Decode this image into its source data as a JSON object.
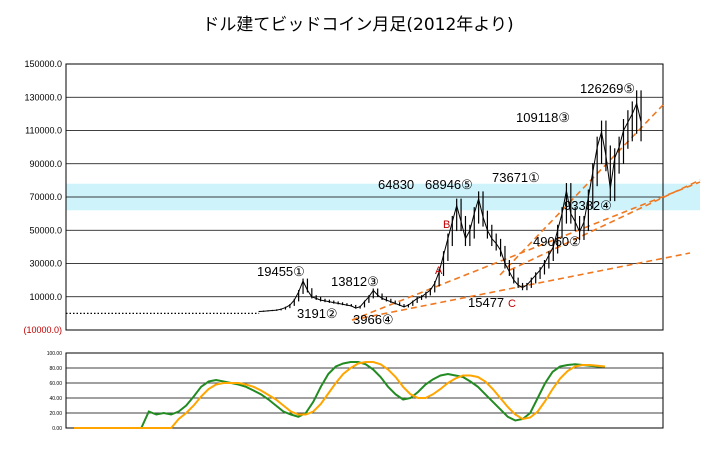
{
  "chart_data": [
    {
      "type": "line",
      "title": "ドル建てビッドコイン月足(2012年より)",
      "y_ticks": [
        "150000.0",
        "130000.0",
        "110000.0",
        "90000.0",
        "70000.0",
        "50000.0",
        "30000.0",
        "10000.0",
        "(10000.0)"
      ],
      "ylim": [
        -10000,
        150000
      ],
      "grid": true,
      "series": [
        {
          "values": [
            [
              0,
              13
            ],
            [
              0.25,
              13
            ],
            [
              0.5,
              13
            ],
            [
              0.75,
              13
            ],
            [
              1,
              13
            ],
            [
              1.25,
              13
            ],
            [
              1.5,
              13
            ],
            [
              1.75,
              13
            ],
            [
              2,
              13
            ],
            [
              2.25,
              13
            ],
            [
              2.5,
              13
            ],
            [
              2.75,
              13
            ],
            [
              3,
              14
            ],
            [
              3.25,
              14
            ],
            [
              3.5,
              15
            ],
            [
              3.75,
              16
            ],
            [
              4,
              17
            ],
            [
              4.25,
              20
            ],
            [
              4.5,
              25
            ],
            [
              4.75,
              40
            ],
            [
              5,
              55
            ],
            [
              5.25,
              70
            ],
            [
              5.5,
              90
            ],
            [
              5.75,
              110
            ],
            [
              6,
              140
            ],
            [
              6.25,
              170
            ],
            [
              6.5,
              200
            ],
            [
              6.75,
              230
            ],
            [
              7,
              260
            ],
            [
              7.25,
              300
            ],
            [
              7.5,
              350
            ],
            [
              7.75,
              400
            ],
            [
              8,
              450
            ],
            [
              8.25,
              500
            ],
            [
              8.5,
              550
            ],
            [
              8.75,
              600
            ],
            [
              9,
              650
            ],
            [
              9.25,
              700
            ],
            [
              9.5,
              750
            ],
            [
              9.75,
              800
            ],
            [
              10,
              850
            ],
            [
              10.25,
              900
            ],
            [
              10.5,
              950
            ],
            [
              10.75,
              1000
            ],
            [
              11,
              1100
            ],
            [
              11.25,
              1300
            ],
            [
              11.5,
              1500
            ],
            [
              11.75,
              1700
            ],
            [
              12,
              2000
            ],
            [
              12.25,
              2500
            ],
            [
              12.5,
              3500
            ],
            [
              12.75,
              5000
            ],
            [
              13,
              8000
            ],
            [
              13.25,
              13000
            ],
            [
              13.5,
              19455
            ],
            [
              13.75,
              14000
            ],
            [
              14,
              10000
            ],
            [
              14.25,
              9000
            ],
            [
              14.5,
              8000
            ],
            [
              14.75,
              7500
            ],
            [
              15,
              7000
            ],
            [
              15.25,
              6500
            ],
            [
              15.5,
              6000
            ],
            [
              15.75,
              5500
            ],
            [
              16,
              5000
            ],
            [
              16.25,
              4500
            ],
            [
              16.5,
              3191
            ],
            [
              16.75,
              4000
            ],
            [
              17,
              7000
            ],
            [
              17.25,
              10000
            ],
            [
              17.5,
              13812
            ],
            [
              17.75,
              11000
            ],
            [
              18,
              9000
            ],
            [
              18.25,
              8000
            ],
            [
              18.5,
              7000
            ],
            [
              18.75,
              6000
            ],
            [
              19,
              5000
            ],
            [
              19.25,
              3966
            ],
            [
              19.5,
              5000
            ],
            [
              19.75,
              7000
            ],
            [
              20,
              9000
            ],
            [
              20.25,
              10000
            ],
            [
              20.5,
              12000
            ],
            [
              20.75,
              14000
            ],
            [
              21,
              18000
            ],
            [
              21.25,
              25000
            ],
            [
              21.5,
              35000
            ],
            [
              21.75,
              45000
            ],
            [
              22,
              55000
            ],
            [
              22.25,
              64830
            ],
            [
              22.5,
              55000
            ],
            [
              22.75,
              45000
            ],
            [
              23,
              50000
            ],
            [
              23.25,
              60000
            ],
            [
              23.5,
              68946
            ],
            [
              23.75,
              58000
            ],
            [
              24,
              50000
            ],
            [
              24.25,
              45000
            ],
            [
              24.5,
              42000
            ],
            [
              24.75,
              38000
            ],
            [
              25,
              30000
            ],
            [
              25.25,
              25000
            ],
            [
              25.5,
              20000
            ],
            [
              25.75,
              17000
            ],
            [
              26,
              15477
            ],
            [
              26.25,
              17000
            ],
            [
              26.5,
              20000
            ],
            [
              26.75,
              23000
            ],
            [
              27,
              26000
            ],
            [
              27.25,
              30000
            ],
            [
              27.5,
              35000
            ],
            [
              27.75,
              40000
            ],
            [
              28,
              50000
            ],
            [
              28.25,
              60000
            ],
            [
              28.5,
              73671
            ],
            [
              28.75,
              60000
            ],
            [
              29,
              55000
            ],
            [
              29.25,
              49060
            ],
            [
              29.5,
              55000
            ],
            [
              29.75,
              70000
            ],
            [
              30,
              85000
            ],
            [
              30.25,
              100000
            ],
            [
              30.5,
              109118
            ],
            [
              30.75,
              95000
            ],
            [
              31,
              75000
            ],
            [
              31.25,
              93382
            ],
            [
              31.5,
              100000
            ],
            [
              31.75,
              110000
            ],
            [
              32,
              115000
            ],
            [
              32.25,
              120000
            ],
            [
              32.5,
              126269
            ],
            [
              32.75,
              115000
            ]
          ]
        }
      ],
      "annotations": [
        "19455①",
        "3191②",
        "13812③",
        "3966④",
        "64830",
        "68946⑤",
        "15477",
        "C",
        "73671①",
        "49060②",
        "109118③",
        "93382④",
        "126269⑤",
        "A",
        "B"
      ]
    },
    {
      "type": "line",
      "y_ticks": [
        "100.00",
        "80.00",
        "60.00",
        "40.00",
        "20.00",
        "0.00"
      ],
      "ylim": [
        0,
        100
      ],
      "grid": true,
      "series": [
        {
          "color": "#228b22",
          "values": [
            0,
            0,
            0,
            0,
            0,
            0,
            0,
            0,
            0,
            0,
            22,
            18,
            20,
            18,
            22,
            30,
            42,
            55,
            62,
            64,
            62,
            60,
            58,
            55,
            50,
            45,
            38,
            30,
            22,
            18,
            15,
            20,
            35,
            55,
            72,
            82,
            86,
            88,
            88,
            85,
            78,
            68,
            55,
            45,
            38,
            40,
            48,
            58,
            65,
            70,
            72,
            70,
            68,
            62,
            55,
            45,
            35,
            25,
            15,
            10,
            12,
            20,
            40,
            60,
            75,
            82,
            84,
            85,
            84,
            83,
            82,
            82
          ]
        },
        {
          "color": "#ffa500",
          "values": [
            0,
            0,
            0,
            0,
            0,
            0,
            0,
            0,
            0,
            0,
            0,
            0,
            0,
            0,
            12,
            20,
            30,
            42,
            52,
            58,
            60,
            60,
            60,
            58,
            55,
            50,
            44,
            38,
            30,
            22,
            18,
            18,
            22,
            32,
            46,
            60,
            72,
            80,
            86,
            88,
            88,
            85,
            78,
            68,
            55,
            45,
            40,
            40,
            45,
            52,
            60,
            66,
            70,
            70,
            68,
            62,
            52,
            40,
            28,
            18,
            12,
            14,
            22,
            36,
            52,
            66,
            76,
            82,
            84,
            84,
            83,
            82
          ]
        }
      ]
    }
  ]
}
